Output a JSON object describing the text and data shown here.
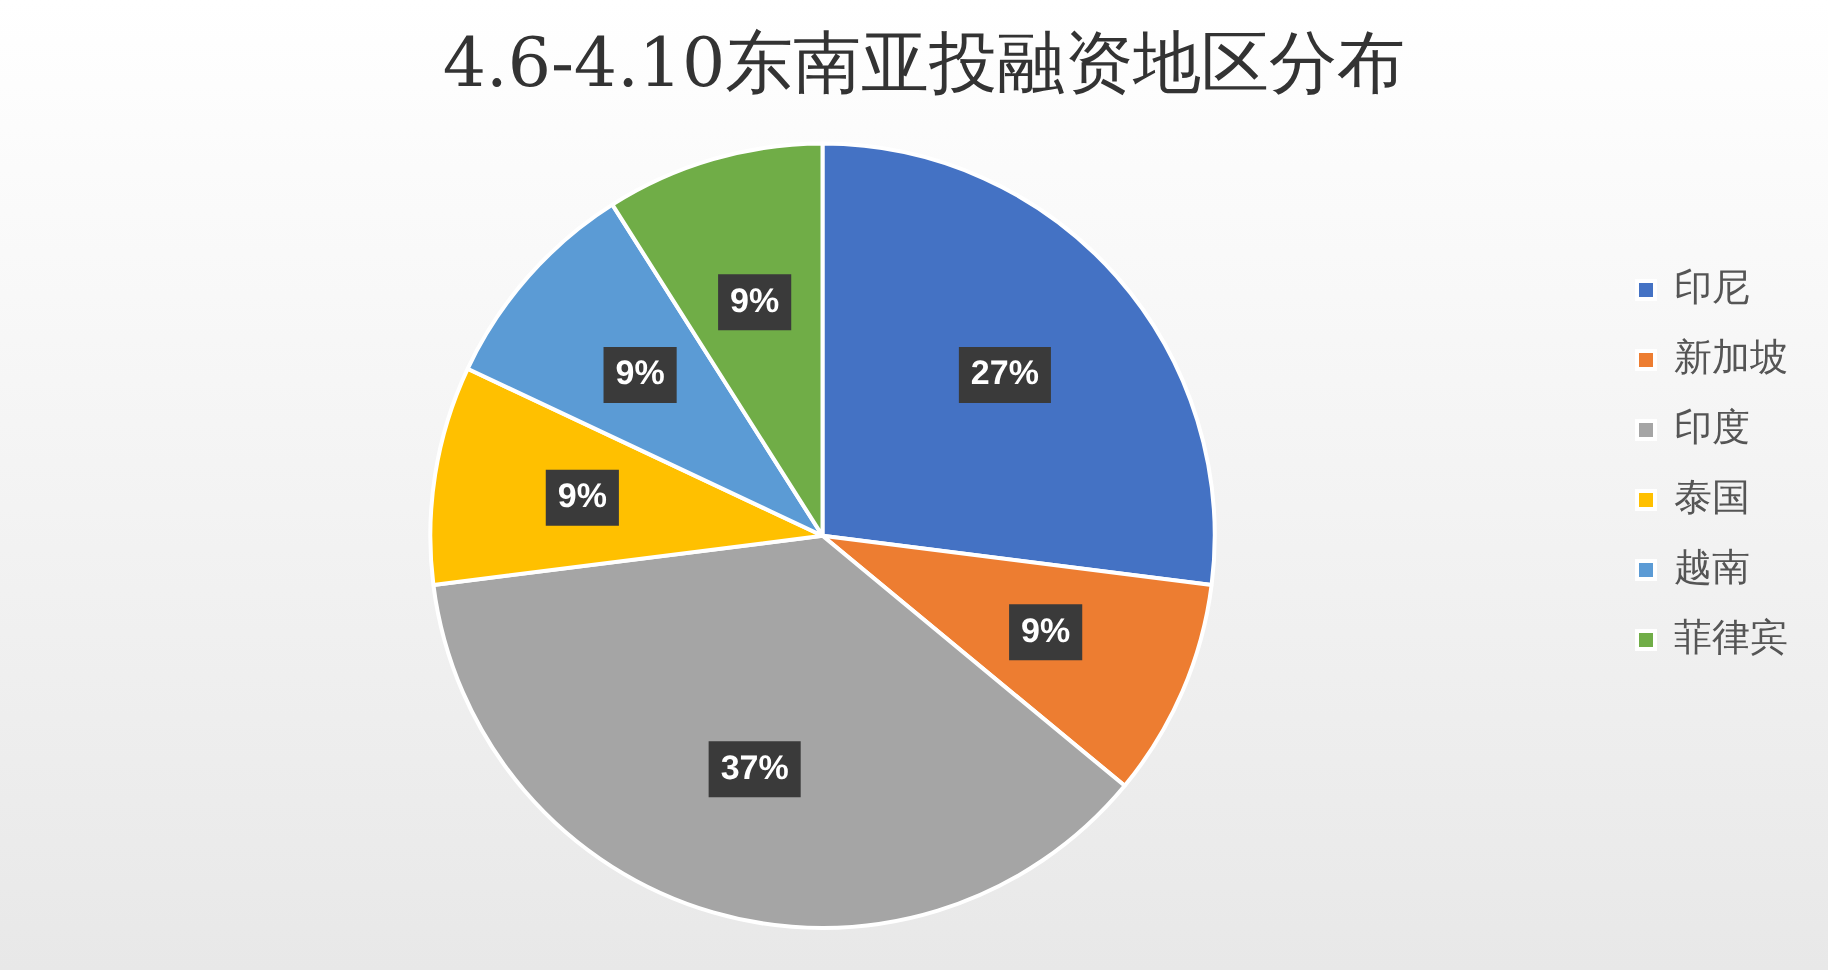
{
  "chart_data": {
    "type": "pie",
    "title": "4.6-4.10东南亚投融资地区分布",
    "categories": [
      "印尼",
      "新加坡",
      "印度",
      "泰国",
      "越南",
      "菲律宾"
    ],
    "values": [
      27,
      9,
      37,
      9,
      9,
      9
    ],
    "colors": [
      "#4472c4",
      "#ed7d31",
      "#a5a5a5",
      "#ffc000",
      "#5b9bd5",
      "#70ad47"
    ],
    "value_labels": [
      "27%",
      "9%",
      "37%",
      "9%",
      "9%",
      "9%"
    ],
    "legend": "right"
  }
}
